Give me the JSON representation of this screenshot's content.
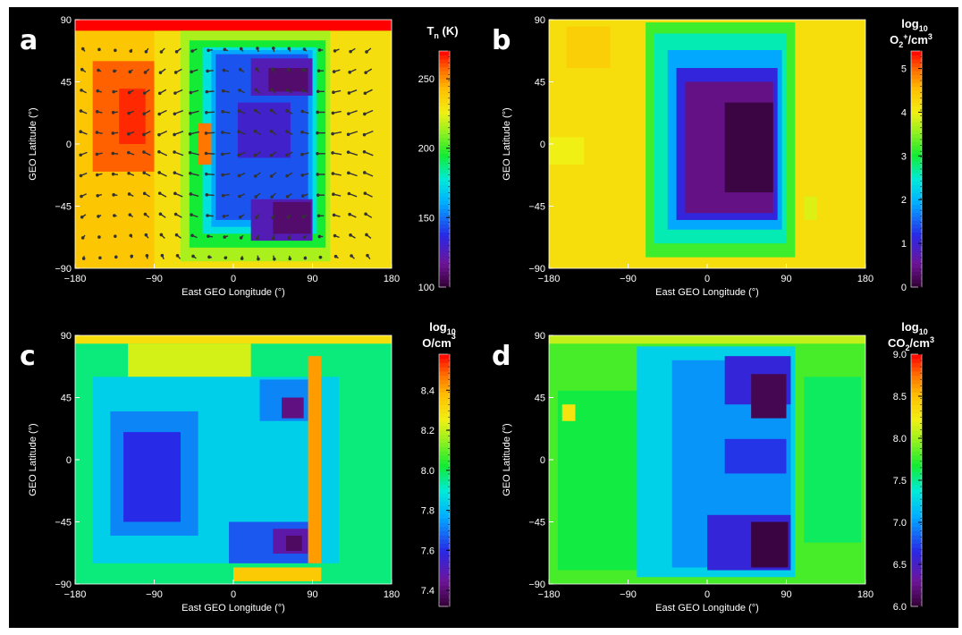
{
  "chart_data": [
    {
      "type": "heatmap",
      "panel_label": "a",
      "xlabel": "East GEO Longitude (°)",
      "ylabel": "GEO Latitude (°)",
      "xlim": [
        -180,
        180
      ],
      "ylim": [
        -90,
        90
      ],
      "x_ticks": [
        "−180",
        "−90",
        "0",
        "90",
        "180"
      ],
      "y_ticks": [
        "90",
        "45",
        "0",
        "−45",
        "−90"
      ],
      "colorbar": {
        "title": "T",
        "title_sub": "n",
        "title_unit": " (K)",
        "range": [
          100,
          270
        ],
        "tick_values": [
          100,
          150,
          200,
          250
        ],
        "tick_labels": [
          "100",
          "150",
          "200",
          "250"
        ]
      },
      "overlay": "wind vectors",
      "regions": [
        {
          "lon": [
            -180,
            180
          ],
          "lat": [
            -90,
            90
          ],
          "value": 232
        },
        {
          "lon": [
            -180,
            -90
          ],
          "lat": [
            -90,
            90
          ],
          "value": 240
        },
        {
          "lon": [
            -160,
            -90
          ],
          "lat": [
            -20,
            60
          ],
          "value": 258
        },
        {
          "lon": [
            -130,
            -100
          ],
          "lat": [
            0,
            40
          ],
          "value": 265
        },
        {
          "lon": [
            -180,
            180
          ],
          "lat": [
            82,
            90
          ],
          "value": 270
        },
        {
          "lon": [
            -60,
            110
          ],
          "lat": [
            -85,
            82
          ],
          "value": 215
        },
        {
          "lon": [
            -50,
            105
          ],
          "lat": [
            -75,
            75
          ],
          "value": 195
        },
        {
          "lon": [
            -35,
            95
          ],
          "lat": [
            -65,
            70
          ],
          "value": 175
        },
        {
          "lon": [
            -25,
            90
          ],
          "lat": [
            -60,
            68
          ],
          "value": 160
        },
        {
          "lon": [
            -20,
            85
          ],
          "lat": [
            -55,
            65
          ],
          "value": 145
        },
        {
          "lon": [
            20,
            90
          ],
          "lat": [
            35,
            62
          ],
          "value": 125
        },
        {
          "lon": [
            40,
            85
          ],
          "lat": [
            38,
            55
          ],
          "value": 110
        },
        {
          "lon": [
            20,
            90
          ],
          "lat": [
            -70,
            -40
          ],
          "value": 125
        },
        {
          "lon": [
            45,
            88
          ],
          "lat": [
            -65,
            -42
          ],
          "value": 110
        },
        {
          "lon": [
            5,
            65
          ],
          "lat": [
            -10,
            30
          ],
          "value": 130
        },
        {
          "lon": [
            -40,
            -25
          ],
          "lat": [
            -15,
            15
          ],
          "value": 255
        }
      ]
    },
    {
      "type": "heatmap",
      "panel_label": "b",
      "xlabel": "East GEO Longitude (°)",
      "ylabel": "GEO Latitude (°)",
      "xlim": [
        -180,
        180
      ],
      "ylim": [
        -90,
        90
      ],
      "x_ticks": [
        "−180",
        "−90",
        "0",
        "90",
        "180"
      ],
      "y_ticks": [
        "90",
        "45",
        "0",
        "−45",
        "−90"
      ],
      "colorbar": {
        "title_line1": "log",
        "title_line1_sub": "10",
        "title_line2": "O",
        "title_line2_sub": "2",
        "title_line2_sup": "+",
        "title_line2_unit": "/cm",
        "title_line2_unit_sup": "3",
        "range": [
          0,
          5.4
        ],
        "tick_values": [
          0,
          1,
          2,
          3,
          4,
          5
        ],
        "tick_labels": [
          "0",
          "1",
          "2",
          "3",
          "4",
          "5"
        ]
      },
      "regions": [
        {
          "lon": [
            -180,
            180
          ],
          "lat": [
            -90,
            90
          ],
          "value": 4.2
        },
        {
          "lon": [
            -160,
            -110
          ],
          "lat": [
            55,
            85
          ],
          "value": 4.35
        },
        {
          "lon": [
            -180,
            -140
          ],
          "lat": [
            -15,
            5
          ],
          "value": 4.0
        },
        {
          "lon": [
            -70,
            100
          ],
          "lat": [
            -82,
            88
          ],
          "value": 3.2
        },
        {
          "lon": [
            -60,
            90
          ],
          "lat": [
            -72,
            80
          ],
          "value": 2.6
        },
        {
          "lon": [
            -45,
            85
          ],
          "lat": [
            -62,
            68
          ],
          "value": 1.9
        },
        {
          "lon": [
            -35,
            80
          ],
          "lat": [
            -55,
            55
          ],
          "value": 1.1
        },
        {
          "lon": [
            -25,
            75
          ],
          "lat": [
            -50,
            45
          ],
          "value": 0.45
        },
        {
          "lon": [
            20,
            75
          ],
          "lat": [
            -35,
            30
          ],
          "value": 0.1
        },
        {
          "lon": [
            110,
            125
          ],
          "lat": [
            -55,
            -38
          ],
          "value": 3.9
        }
      ]
    },
    {
      "type": "heatmap",
      "panel_label": "c",
      "xlabel": "East GEO Longitude (°)",
      "ylabel": "GEO Latitude (°)",
      "xlim": [
        -180,
        180
      ],
      "ylim": [
        -90,
        90
      ],
      "x_ticks": [
        "−180",
        "−90",
        "0",
        "90",
        "180"
      ],
      "y_ticks": [
        "90",
        "45",
        "0",
        "−45",
        "−90"
      ],
      "colorbar": {
        "title_line1": "log",
        "title_line1_sub": "10",
        "title_line2": "O/cm",
        "title_line2_sup": "3",
        "range": [
          7.32,
          8.58
        ],
        "tick_values": [
          7.4,
          7.6,
          7.8,
          8.0,
          8.2,
          8.4
        ],
        "tick_labels": [
          "7.4",
          "7.6",
          "7.8",
          "8.0",
          "8.2",
          "8.4"
        ]
      },
      "regions": [
        {
          "lon": [
            -180,
            180
          ],
          "lat": [
            -90,
            90
          ],
          "value": 7.97
        },
        {
          "lon": [
            -180,
            180
          ],
          "lat": [
            84,
            90
          ],
          "value": 8.3
        },
        {
          "lon": [
            -120,
            20
          ],
          "lat": [
            60,
            84
          ],
          "value": 8.22
        },
        {
          "lon": [
            -160,
            120
          ],
          "lat": [
            -75,
            60
          ],
          "value": 7.84
        },
        {
          "lon": [
            -140,
            -40
          ],
          "lat": [
            -55,
            35
          ],
          "value": 7.72
        },
        {
          "lon": [
            -125,
            -60
          ],
          "lat": [
            -45,
            20
          ],
          "value": 7.6
        },
        {
          "lon": [
            30,
            95
          ],
          "lat": [
            28,
            58
          ],
          "value": 7.72
        },
        {
          "lon": [
            55,
            80
          ],
          "lat": [
            30,
            45
          ],
          "value": 7.42
        },
        {
          "lon": [
            -5,
            90
          ],
          "lat": [
            -75,
            -45
          ],
          "value": 7.66
        },
        {
          "lon": [
            45,
            85
          ],
          "lat": [
            -68,
            -50
          ],
          "value": 7.48
        },
        {
          "lon": [
            60,
            78
          ],
          "lat": [
            -66,
            -55
          ],
          "value": 7.38
        },
        {
          "lon": [
            85,
            100
          ],
          "lat": [
            -75,
            75
          ],
          "value": 8.42
        },
        {
          "lon": [
            0,
            100
          ],
          "lat": [
            -88,
            -78
          ],
          "value": 8.35
        }
      ]
    },
    {
      "type": "heatmap",
      "panel_label": "d",
      "xlabel": "East GEO Longitude (°)",
      "ylabel": "GEO Latitude (°)",
      "xlim": [
        -180,
        180
      ],
      "ylim": [
        -90,
        90
      ],
      "x_ticks": [
        "−180",
        "−90",
        "0",
        "90",
        "180"
      ],
      "y_ticks": [
        "90",
        "45",
        "0",
        "−45",
        "−90"
      ],
      "colorbar": {
        "title_line1": "log",
        "title_line1_sub": "10",
        "title_line2": "CO",
        "title_line2_sub": "2",
        "title_line2_unit": "/cm",
        "title_line2_unit_sup": "3",
        "range": [
          6.0,
          9.0
        ],
        "tick_values": [
          6.0,
          6.5,
          7.0,
          7.5,
          8.0,
          8.5,
          9.0
        ],
        "tick_labels": [
          "6.0",
          "6.5",
          "7.0",
          "7.5",
          "8.0",
          "8.5",
          "9.0"
        ]
      },
      "regions": [
        {
          "lon": [
            -180,
            180
          ],
          "lat": [
            -90,
            90
          ],
          "value": 7.8
        },
        {
          "lon": [
            -180,
            180
          ],
          "lat": [
            84,
            90
          ],
          "value": 8.1
        },
        {
          "lon": [
            -170,
            -40
          ],
          "lat": [
            -80,
            50
          ],
          "value": 7.65
        },
        {
          "lon": [
            110,
            175
          ],
          "lat": [
            -60,
            60
          ],
          "value": 7.6
        },
        {
          "lon": [
            -80,
            100
          ],
          "lat": [
            -85,
            82
          ],
          "value": 7.25
        },
        {
          "lon": [
            -40,
            95
          ],
          "lat": [
            -78,
            72
          ],
          "value": 7.0
        },
        {
          "lon": [
            20,
            95
          ],
          "lat": [
            40,
            75
          ],
          "value": 6.6
        },
        {
          "lon": [
            50,
            90
          ],
          "lat": [
            30,
            62
          ],
          "value": 6.1
        },
        {
          "lon": [
            0,
            95
          ],
          "lat": [
            -80,
            -40
          ],
          "value": 6.6
        },
        {
          "lon": [
            50,
            92
          ],
          "lat": [
            -78,
            -45
          ],
          "value": 6.05
        },
        {
          "lon": [
            20,
            90
          ],
          "lat": [
            -10,
            15
          ],
          "value": 6.7
        },
        {
          "lon": [
            -165,
            -150
          ],
          "lat": [
            28,
            40
          ],
          "value": 8.3
        }
      ]
    }
  ]
}
